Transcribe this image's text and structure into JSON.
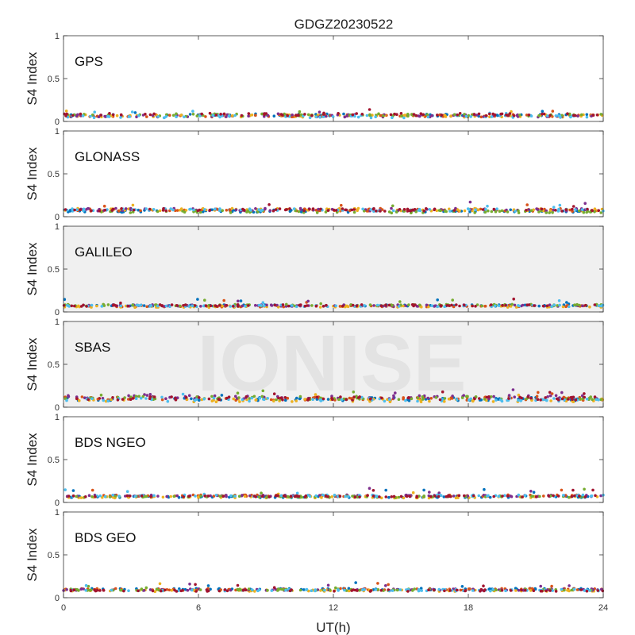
{
  "chart_data": {
    "type": "scatter",
    "title": "GDGZ20230522",
    "xlabel": "UT(h)",
    "ylabel": "S4 Index",
    "xlim": [
      0,
      24
    ],
    "xticks": [
      0,
      6,
      12,
      18,
      24
    ],
    "ylim": [
      0,
      1
    ],
    "yticks": [
      0,
      0.5,
      1
    ],
    "watermark": "IONISE",
    "series_colors": [
      "#0072BD",
      "#D95319",
      "#EDB120",
      "#7E2F8E",
      "#77AC30",
      "#4DBEEE",
      "#A2142F"
    ],
    "panels": [
      {
        "label": "GPS",
        "baseline": 0.07,
        "spread": 0.03
      },
      {
        "label": "GLONASS",
        "baseline": 0.07,
        "spread": 0.03
      },
      {
        "label": "GALILEO",
        "baseline": 0.07,
        "spread": 0.02
      },
      {
        "label": "SBAS",
        "baseline": 0.1,
        "spread": 0.04
      },
      {
        "label": "BDS NGEO",
        "baseline": 0.07,
        "spread": 0.02
      },
      {
        "label": "BDS GEO",
        "baseline": 0.09,
        "spread": 0.02
      }
    ]
  }
}
